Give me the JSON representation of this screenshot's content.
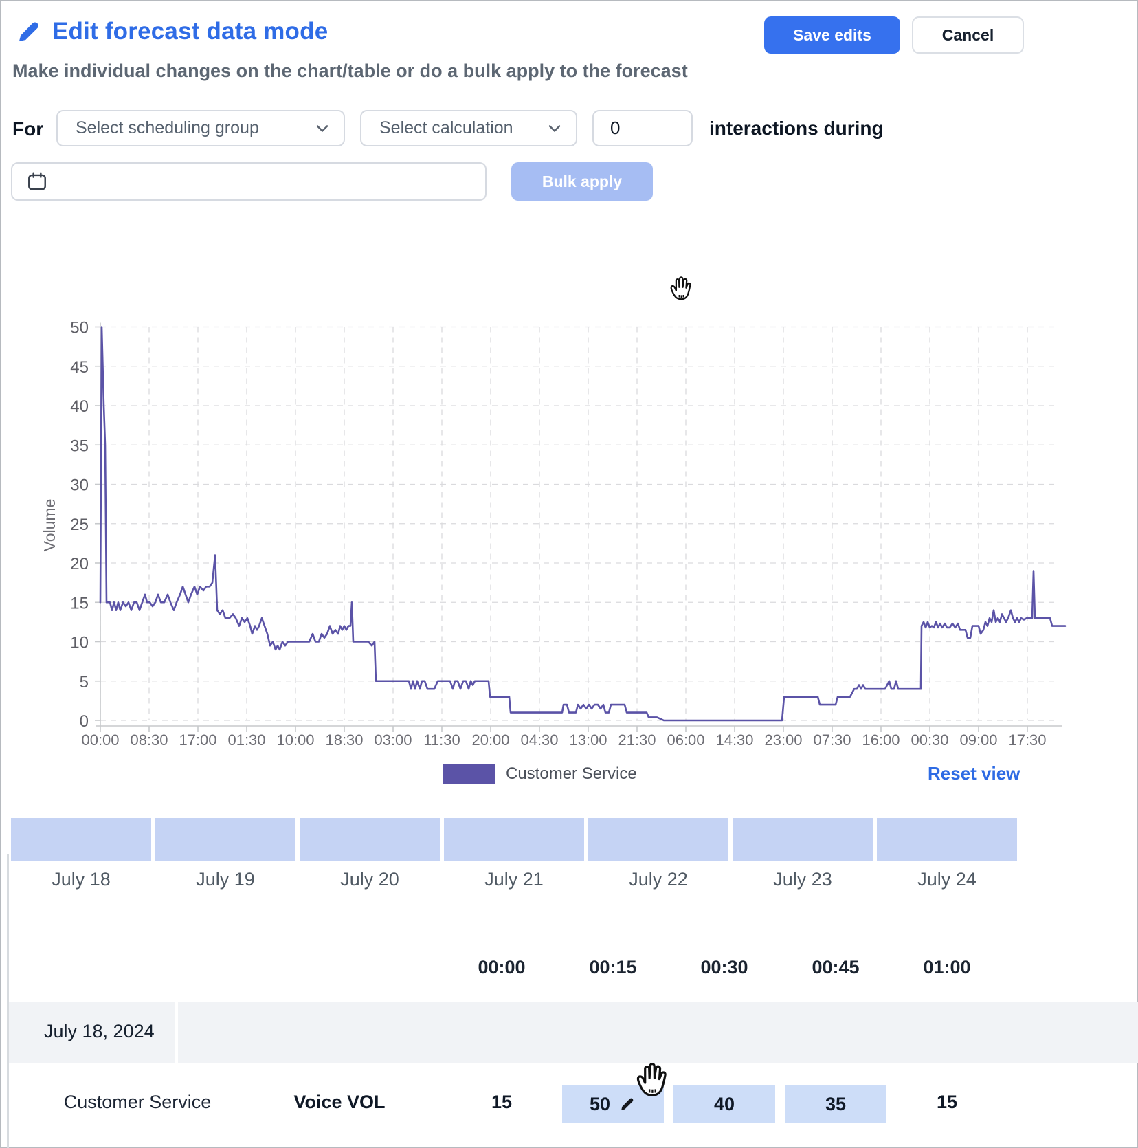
{
  "header": {
    "title": "Edit forecast data mode",
    "save_button": "Save edits",
    "cancel_button": "Cancel",
    "subtitle": "Make individual changes on the chart/table or do a bulk apply to the forecast"
  },
  "bulk_controls": {
    "for_label": "For",
    "scheduling_group_placeholder": "Select scheduling group",
    "calculation_placeholder": "Select calculation",
    "interactions_value": "0",
    "interactions_suffix": "interactions during",
    "date_value": "",
    "bulk_apply_label": "Bulk apply"
  },
  "chart": {
    "y_axis_label": "Volume",
    "y_ticks": [
      0,
      5,
      10,
      15,
      20,
      25,
      30,
      35,
      40,
      45,
      50
    ],
    "x_ticks": [
      "00:00",
      "08:30",
      "17:00",
      "01:30",
      "10:00",
      "18:30",
      "03:00",
      "11:30",
      "20:00",
      "04:30",
      "13:00",
      "21:30",
      "06:00",
      "14:30",
      "23:00",
      "07:30",
      "16:00",
      "00:30",
      "09:00",
      "17:30"
    ],
    "line_color": "#5b53a7",
    "legend_label": "Customer Service",
    "reset_view_label": "Reset view"
  },
  "chart_data": {
    "type": "line",
    "series": [
      {
        "name": "Customer Service",
        "color": "#5b53a7"
      }
    ],
    "ylabel": "Volume",
    "ylim": [
      0,
      50
    ],
    "grid": true,
    "legend_position": "bottom",
    "x_tick_labels": [
      "00:00",
      "08:30",
      "17:00",
      "01:30",
      "10:00",
      "18:30",
      "03:00",
      "11:30",
      "20:00",
      "04:30",
      "13:00",
      "21:30",
      "06:00",
      "14:30",
      "23:00",
      "07:30",
      "16:00",
      "00:30",
      "09:00",
      "17:30"
    ],
    "points": [
      [
        146,
        15
      ],
      [
        148,
        50
      ],
      [
        151,
        40
      ],
      [
        153,
        35
      ],
      [
        155,
        15
      ],
      [
        160,
        15
      ],
      [
        163,
        14
      ],
      [
        166,
        15
      ],
      [
        169,
        14
      ],
      [
        172,
        15
      ],
      [
        175,
        14
      ],
      [
        179,
        15
      ],
      [
        183,
        14.5
      ],
      [
        187,
        15
      ],
      [
        191,
        14
      ],
      [
        195,
        15
      ],
      [
        199,
        15
      ],
      [
        203,
        14
      ],
      [
        207,
        15
      ],
      [
        211,
        16
      ],
      [
        214,
        15
      ],
      [
        218,
        15
      ],
      [
        222,
        14.5
      ],
      [
        226,
        15
      ],
      [
        230,
        16
      ],
      [
        234,
        15
      ],
      [
        239,
        15
      ],
      [
        244,
        16
      ],
      [
        248,
        15
      ],
      [
        253,
        14
      ],
      [
        257,
        15
      ],
      [
        262,
        16
      ],
      [
        266,
        17
      ],
      [
        270,
        16
      ],
      [
        274,
        15
      ],
      [
        278,
        16
      ],
      [
        283,
        17
      ],
      [
        287,
        16
      ],
      [
        291,
        17
      ],
      [
        296,
        16.5
      ],
      [
        300,
        17
      ],
      [
        305,
        17
      ],
      [
        309,
        17.5
      ],
      [
        313,
        21
      ],
      [
        316,
        14
      ],
      [
        320,
        13.5
      ],
      [
        324,
        14
      ],
      [
        328,
        13
      ],
      [
        334,
        13
      ],
      [
        339,
        13.5
      ],
      [
        343,
        13
      ],
      [
        348,
        12
      ],
      [
        352,
        13
      ],
      [
        356,
        12.5
      ],
      [
        360,
        13
      ],
      [
        364,
        12
      ],
      [
        367,
        11
      ],
      [
        371,
        12
      ],
      [
        374,
        11.5
      ],
      [
        377,
        12
      ],
      [
        381,
        13
      ],
      [
        385,
        12
      ],
      [
        389,
        11
      ],
      [
        393,
        9.5
      ],
      [
        397,
        10
      ],
      [
        401,
        9
      ],
      [
        404,
        9.5
      ],
      [
        407,
        9
      ],
      [
        411,
        10
      ],
      [
        415,
        9.5
      ],
      [
        419,
        10
      ],
      [
        424,
        10
      ],
      [
        430,
        10
      ],
      [
        437,
        10
      ],
      [
        444,
        10
      ],
      [
        450,
        10
      ],
      [
        455,
        11
      ],
      [
        459,
        10
      ],
      [
        464,
        10
      ],
      [
        468,
        11
      ],
      [
        472,
        10.5
      ],
      [
        476,
        11
      ],
      [
        480,
        12
      ],
      [
        484,
        11
      ],
      [
        488,
        11.5
      ],
      [
        492,
        11
      ],
      [
        495,
        12
      ],
      [
        498,
        11.5
      ],
      [
        501,
        12
      ],
      [
        504,
        11.5
      ],
      [
        507,
        12
      ],
      [
        510,
        12
      ],
      [
        512,
        15
      ],
      [
        514,
        10
      ],
      [
        518,
        10
      ],
      [
        524,
        10
      ],
      [
        530,
        10
      ],
      [
        536,
        10
      ],
      [
        541,
        9.5
      ],
      [
        545,
        10
      ],
      [
        547,
        5
      ],
      [
        556,
        5
      ],
      [
        566,
        5
      ],
      [
        576,
        5
      ],
      [
        586,
        5
      ],
      [
        595,
        5
      ],
      [
        598,
        4
      ],
      [
        601,
        5
      ],
      [
        604,
        4
      ],
      [
        607,
        5
      ],
      [
        611,
        4
      ],
      [
        614,
        5
      ],
      [
        618,
        5
      ],
      [
        622,
        4
      ],
      [
        626,
        4
      ],
      [
        632,
        4
      ],
      [
        637,
        5
      ],
      [
        643,
        5
      ],
      [
        649,
        5
      ],
      [
        655,
        5
      ],
      [
        659,
        4
      ],
      [
        662,
        5
      ],
      [
        666,
        5
      ],
      [
        670,
        4
      ],
      [
        674,
        5
      ],
      [
        678,
        5
      ],
      [
        682,
        4
      ],
      [
        685,
        5
      ],
      [
        688,
        4.5
      ],
      [
        691,
        5
      ],
      [
        695,
        5
      ],
      [
        700,
        5
      ],
      [
        706,
        5
      ],
      [
        711,
        5
      ],
      [
        713,
        3
      ],
      [
        718,
        3
      ],
      [
        724,
        3
      ],
      [
        730,
        3
      ],
      [
        736,
        3
      ],
      [
        741,
        3
      ],
      [
        743,
        1
      ],
      [
        750,
        1
      ],
      [
        758,
        1
      ],
      [
        766,
        1
      ],
      [
        774,
        1
      ],
      [
        782,
        1
      ],
      [
        790,
        1
      ],
      [
        798,
        1
      ],
      [
        806,
        1
      ],
      [
        814,
        1
      ],
      [
        818,
        1
      ],
      [
        820,
        2
      ],
      [
        825,
        2
      ],
      [
        828,
        1
      ],
      [
        833,
        1
      ],
      [
        838,
        1
      ],
      [
        841,
        2
      ],
      [
        845,
        1.5
      ],
      [
        849,
        2
      ],
      [
        853,
        1.5
      ],
      [
        857,
        2
      ],
      [
        861,
        1.5
      ],
      [
        865,
        2
      ],
      [
        870,
        2
      ],
      [
        874,
        1.5
      ],
      [
        878,
        2
      ],
      [
        881,
        1
      ],
      [
        886,
        1
      ],
      [
        889,
        2
      ],
      [
        894,
        2
      ],
      [
        899,
        2
      ],
      [
        904,
        2
      ],
      [
        909,
        2
      ],
      [
        912,
        1
      ],
      [
        918,
        1
      ],
      [
        924,
        1
      ],
      [
        930,
        1
      ],
      [
        936,
        1
      ],
      [
        941,
        1
      ],
      [
        944,
        0.4
      ],
      [
        950,
        0.4
      ],
      [
        956,
        0.4
      ],
      [
        961,
        0.2
      ],
      [
        966,
        0
      ],
      [
        980,
        0
      ],
      [
        1000,
        0
      ],
      [
        1020,
        0
      ],
      [
        1040,
        0
      ],
      [
        1060,
        0
      ],
      [
        1080,
        0
      ],
      [
        1100,
        0
      ],
      [
        1120,
        0
      ],
      [
        1138,
        0
      ],
      [
        1141,
        3
      ],
      [
        1150,
        3
      ],
      [
        1160,
        3
      ],
      [
        1170,
        3
      ],
      [
        1180,
        3
      ],
      [
        1190,
        3
      ],
      [
        1193,
        2
      ],
      [
        1200,
        2
      ],
      [
        1208,
        2
      ],
      [
        1216,
        2
      ],
      [
        1219,
        3
      ],
      [
        1228,
        3
      ],
      [
        1237,
        3
      ],
      [
        1240,
        3.5
      ],
      [
        1243,
        4
      ],
      [
        1247,
        4
      ],
      [
        1250,
        4.5
      ],
      [
        1253,
        4
      ],
      [
        1256,
        4.5
      ],
      [
        1259,
        4
      ],
      [
        1264,
        4
      ],
      [
        1272,
        4
      ],
      [
        1280,
        4
      ],
      [
        1288,
        4
      ],
      [
        1294,
        5
      ],
      [
        1297,
        4
      ],
      [
        1301,
        4
      ],
      [
        1304,
        5
      ],
      [
        1307,
        4
      ],
      [
        1313,
        4
      ],
      [
        1321,
        4
      ],
      [
        1329,
        4
      ],
      [
        1336,
        4
      ],
      [
        1340,
        4
      ],
      [
        1341,
        12
      ],
      [
        1344,
        12.5
      ],
      [
        1347,
        11.8
      ],
      [
        1350,
        12.5
      ],
      [
        1353,
        11.8
      ],
      [
        1356,
        12
      ],
      [
        1359,
        11.8
      ],
      [
        1362,
        12.5
      ],
      [
        1365,
        11.8
      ],
      [
        1368,
        12.3
      ],
      [
        1371,
        11.8
      ],
      [
        1375,
        12.3
      ],
      [
        1378,
        11.8
      ],
      [
        1382,
        11.8
      ],
      [
        1386,
        12.3
      ],
      [
        1390,
        11.8
      ],
      [
        1394,
        12.3
      ],
      [
        1397,
        11.5
      ],
      [
        1401,
        11.5
      ],
      [
        1405,
        11.5
      ],
      [
        1408,
        10.5
      ],
      [
        1412,
        10.5
      ],
      [
        1415,
        12
      ],
      [
        1419,
        12
      ],
      [
        1424,
        12
      ],
      [
        1427,
        11
      ],
      [
        1431,
        11.5
      ],
      [
        1434,
        12.5
      ],
      [
        1437,
        12
      ],
      [
        1440,
        13
      ],
      [
        1443,
        12.5
      ],
      [
        1446,
        14
      ],
      [
        1449,
        12.5
      ],
      [
        1452,
        13
      ],
      [
        1455,
        12.5
      ],
      [
        1458,
        13.5
      ],
      [
        1461,
        13
      ],
      [
        1464,
        12.5
      ],
      [
        1467,
        13
      ],
      [
        1471,
        14
      ],
      [
        1474,
        13
      ],
      [
        1477,
        12.5
      ],
      [
        1480,
        13
      ],
      [
        1483,
        12.5
      ],
      [
        1486,
        13
      ],
      [
        1490,
        12.8
      ],
      [
        1494,
        13
      ],
      [
        1498,
        13
      ],
      [
        1502,
        13
      ],
      [
        1504,
        19
      ],
      [
        1506,
        13
      ],
      [
        1511,
        13
      ],
      [
        1517,
        13
      ],
      [
        1523,
        13
      ],
      [
        1528,
        13
      ],
      [
        1531,
        12
      ],
      [
        1537,
        12
      ],
      [
        1543,
        12
      ],
      [
        1550,
        12
      ]
    ]
  },
  "table": {
    "day_headers": [
      "July 18",
      "July 19",
      "July 20",
      "July 21",
      "July 22",
      "July 23",
      "July 24"
    ],
    "time_headers": [
      "00:00",
      "00:15",
      "00:30",
      "00:45",
      "01:00"
    ],
    "row_group": {
      "date_label": "July 18, 2024",
      "group_label": "Customer Service",
      "metric_label": "Voice VOL",
      "values": [
        "15",
        "50",
        "40",
        "35",
        "15"
      ],
      "highlighted_indices": [
        1,
        2,
        3
      ],
      "edited_index": 1
    }
  },
  "colors": {
    "accent_blue": "#2f6ce6",
    "button_blue": "#3671ee",
    "disabled_button_blue": "#a6bdf3",
    "line_purple": "#5b53a7",
    "day_header_cell_blue": "#c5d3f4",
    "highlight_cell_blue": "#cdddf8",
    "row_gray": "#f1f3f6",
    "link_blue": "#2e6be4"
  }
}
